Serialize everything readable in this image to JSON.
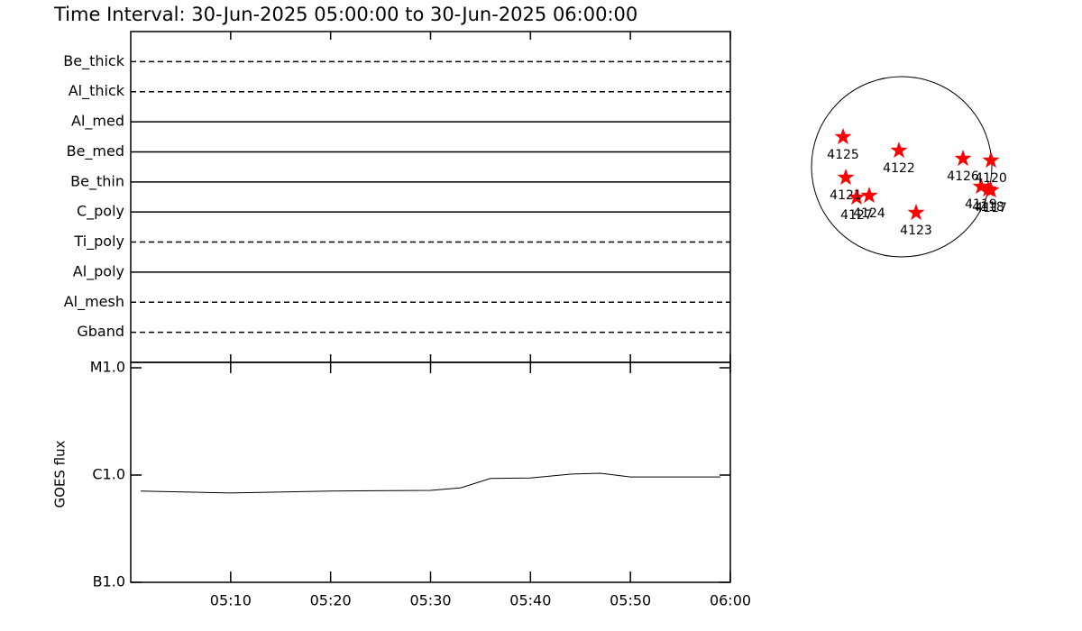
{
  "chart_data": [
    {
      "type": "timeline",
      "title": "Time Interval: 30-Jun-2025 05:00:00 to 30-Jun-2025 06:00:00",
      "series": [
        {
          "name": "Be_thick",
          "style": "dashed"
        },
        {
          "name": "Al_thick",
          "style": "dashed"
        },
        {
          "name": "Al_med",
          "style": "solid"
        },
        {
          "name": "Be_med",
          "style": "solid"
        },
        {
          "name": "Be_thin",
          "style": "solid"
        },
        {
          "name": "C_poly",
          "style": "solid"
        },
        {
          "name": "Ti_poly",
          "style": "dashed"
        },
        {
          "name": "Al_poly",
          "style": "solid"
        },
        {
          "name": "Al_mesh",
          "style": "dashed"
        },
        {
          "name": "Gband",
          "style": "dashed"
        }
      ]
    },
    {
      "type": "line",
      "ylabel": "GOES flux",
      "log_scale": true,
      "color": "#000000",
      "xlim": [
        "05:00",
        "06:00"
      ],
      "xticks": [
        "05:10",
        "05:20",
        "05:30",
        "05:40",
        "05:50",
        "06:00"
      ],
      "ylim": [
        1e-07,
        1e-05
      ],
      "yticks": [
        {
          "value": 1e-07,
          "label": "B1.0"
        },
        {
          "value": 1e-06,
          "label": "C1.0"
        },
        {
          "value": 1e-05,
          "label": "M1.0"
        }
      ],
      "x": [
        "05:01",
        "05:10",
        "05:20",
        "05:30",
        "05:33",
        "05:36",
        "05:40",
        "05:44",
        "05:47",
        "05:50",
        "05:55",
        "05:59"
      ],
      "values": [
        7.1e-07,
        6.8e-07,
        7.1e-07,
        7.2e-07,
        7.6e-07,
        9.3e-07,
        9.4e-07,
        1.02e-06,
        1.04e-06,
        9.6e-07,
        9.6e-07,
        9.6e-07
      ]
    },
    {
      "type": "scatter",
      "color": "#ff0000",
      "xlim": [
        -1,
        1
      ],
      "ylim": [
        -1,
        1
      ],
      "labels": [
        "4125",
        "4122",
        "4126",
        "4120",
        "4121",
        "4127",
        "4124",
        "4123",
        "4119",
        "4118",
        "4117"
      ],
      "x": [
        -0.65,
        -0.03,
        0.68,
        0.99,
        -0.62,
        -0.5,
        -0.36,
        0.16,
        0.88,
        0.96,
        0.99
      ],
      "values": [
        0.33,
        0.18,
        0.09,
        0.07,
        -0.12,
        -0.34,
        -0.32,
        -0.51,
        -0.22,
        -0.25,
        -0.26
      ]
    }
  ]
}
